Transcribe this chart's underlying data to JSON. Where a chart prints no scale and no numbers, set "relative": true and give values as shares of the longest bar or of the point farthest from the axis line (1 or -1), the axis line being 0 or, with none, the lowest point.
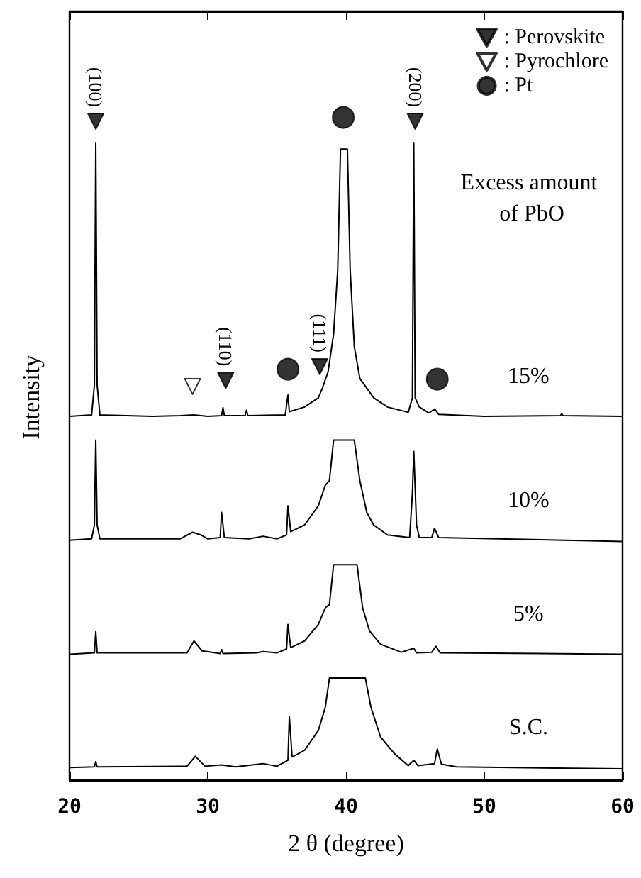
{
  "chart_data": {
    "type": "line",
    "relative": true,
    "xlabel": "2 θ (degree)",
    "ylabel": "Intensity",
    "legend": "top right",
    "marker": "none",
    "line_style": "solid",
    "xlim": [
      20,
      60
    ],
    "xticks": [
      20,
      30,
      40,
      50,
      60
    ],
    "series": [
      {
        "color": "#000000",
        "x": [
          20,
          21.6,
          21.8,
          21.9,
          22.0,
          22.2,
          26,
          28,
          29,
          30,
          31.0,
          31.1,
          31.2,
          32.7,
          32.8,
          32.9,
          35.6,
          35.8,
          35.9,
          37,
          38,
          38.3,
          38.7,
          39.1,
          39.4,
          39.6,
          40.1,
          40.3,
          40.6,
          41,
          42,
          43,
          44.5,
          44.8,
          44.9,
          45.0,
          45.3,
          46,
          46.4,
          46.7,
          50,
          55.5,
          55.6,
          55.7,
          60
        ],
        "values": [
          0.549,
          0.551,
          0.596,
          0.962,
          0.596,
          0.551,
          0.549,
          0.55,
          0.551,
          0.549,
          0.55,
          0.562,
          0.55,
          0.55,
          0.558,
          0.55,
          0.551,
          0.581,
          0.556,
          0.563,
          0.577,
          0.592,
          0.616,
          0.673,
          0.77,
          0.952,
          0.952,
          0.77,
          0.654,
          0.606,
          0.577,
          0.563,
          0.555,
          0.577,
          0.962,
          0.577,
          0.563,
          0.554,
          0.56,
          0.552,
          0.549,
          0.55,
          0.553,
          0.55,
          0.549
        ]
      },
      {
        "color": "#000000",
        "x": [
          20,
          21.6,
          21.8,
          21.9,
          22.0,
          22.2,
          28,
          28.9,
          29.5,
          30,
          30.9,
          31.0,
          31.2,
          33,
          34,
          35,
          35.7,
          35.8,
          36,
          37,
          38,
          38.5,
          38.8,
          39.1,
          40.6,
          41,
          41.5,
          42,
          43,
          44.6,
          44.8,
          44.9,
          45.1,
          45.3,
          46.2,
          46.4,
          46.7,
          60
        ],
        "values": [
          0.362,
          0.364,
          0.385,
          0.513,
          0.385,
          0.364,
          0.364,
          0.374,
          0.37,
          0.364,
          0.366,
          0.404,
          0.366,
          0.364,
          0.368,
          0.364,
          0.37,
          0.414,
          0.375,
          0.385,
          0.414,
          0.445,
          0.452,
          0.513,
          0.513,
          0.452,
          0.404,
          0.385,
          0.37,
          0.366,
          0.433,
          0.496,
          0.385,
          0.366,
          0.366,
          0.38,
          0.366,
          0.36
        ]
      },
      {
        "color": "#000000",
        "x": [
          20,
          21.8,
          21.9,
          22.0,
          28.5,
          29.0,
          29.6,
          30.9,
          31.0,
          31.1,
          33.5,
          34,
          35,
          35.7,
          35.8,
          36,
          37,
          38,
          38.5,
          38.8,
          39.1,
          40.8,
          41.2,
          41.7,
          42.5,
          44,
          44.9,
          45.1,
          46.2,
          46.5,
          46.8,
          60
        ],
        "values": [
          0.19,
          0.192,
          0.224,
          0.192,
          0.192,
          0.21,
          0.195,
          0.191,
          0.197,
          0.191,
          0.192,
          0.194,
          0.192,
          0.198,
          0.235,
          0.2,
          0.21,
          0.235,
          0.26,
          0.265,
          0.325,
          0.325,
          0.26,
          0.225,
          0.205,
          0.193,
          0.199,
          0.192,
          0.193,
          0.202,
          0.192,
          0.19
        ]
      },
      {
        "color": "#000000",
        "x": [
          20,
          21.8,
          21.9,
          22.0,
          28.5,
          29.1,
          29.8,
          31.0,
          32,
          34,
          35,
          35.8,
          35.9,
          36.1,
          37,
          38,
          38.5,
          38.8,
          41.4,
          41.8,
          42.5,
          43.5,
          44.5,
          44.9,
          45.2,
          46.4,
          46.6,
          46.9,
          48,
          60
        ],
        "values": [
          0.019,
          0.02,
          0.028,
          0.02,
          0.021,
          0.036,
          0.021,
          0.023,
          0.02,
          0.025,
          0.021,
          0.03,
          0.096,
          0.035,
          0.045,
          0.075,
          0.11,
          0.154,
          0.154,
          0.11,
          0.065,
          0.04,
          0.022,
          0.03,
          0.022,
          0.025,
          0.047,
          0.024,
          0.02,
          0.017
        ]
      },
      {
        "name": ": Perovskite",
        "type": "scatter",
        "marker": "triangle",
        "color": "#000000",
        "x": [
          21.9,
          31.3,
          38.1,
          45.0
        ],
        "values": [
          0.994,
          0.603,
          0.624,
          0.994
        ]
      },
      {
        "name": ": Pyrochlore",
        "type": "scatter",
        "marker": "triangle",
        "color": "#ffffff",
        "x": [
          28.9
        ],
        "values": [
          0.594
        ]
      },
      {
        "name": ": Pt",
        "type": "scatter",
        "marker": "circle",
        "color": "#000000",
        "x": [
          35.8,
          39.8,
          46.6
        ],
        "values": [
          0.62,
          1.0,
          0.605
        ]
      }
    ],
    "annotations": [
      {
        "text": "(100)",
        "x": 21.9,
        "y": 0.994
      },
      {
        "text": "(110)",
        "x": 31.3,
        "y": 0.603
      },
      {
        "text": "(111)",
        "x": 38.1,
        "y": 0.624
      },
      {
        "text": "(200)",
        "x": 45.0,
        "y": 0.994
      },
      "Excess amount of PbO",
      "15%",
      "10%",
      "5%",
      "S.C."
    ]
  }
}
